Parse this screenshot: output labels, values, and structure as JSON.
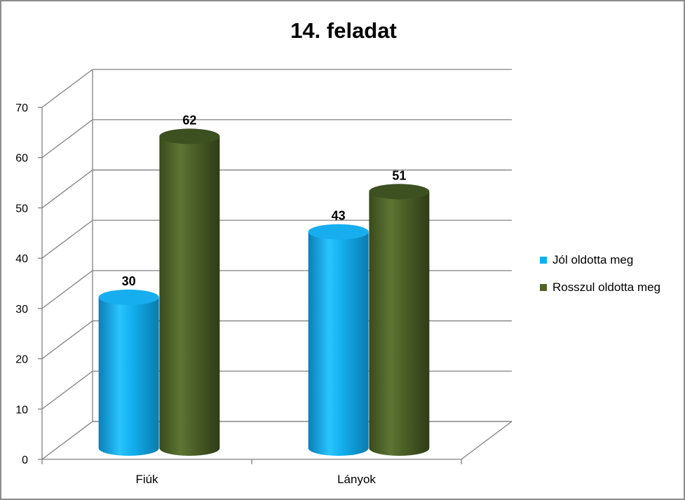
{
  "chart_data": {
    "type": "bar",
    "title": "14. feladat",
    "categories": [
      "Fiúk",
      "Lányok"
    ],
    "series": [
      {
        "name": "Jól oldotta meg",
        "values": [
          30,
          43
        ],
        "color": "#00b4ef"
      },
      {
        "name": "Rosszul oldotta meg",
        "values": [
          62,
          51
        ],
        "color": "#4f6228"
      }
    ],
    "ylim": [
      0,
      70
    ],
    "yticks": [
      0,
      10,
      20,
      30,
      40,
      50,
      60,
      70
    ],
    "grid": true,
    "legend": "right",
    "style": "3d-cylinder"
  }
}
